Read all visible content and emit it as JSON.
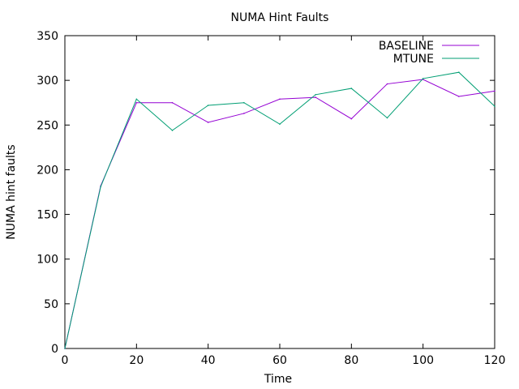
{
  "chart_data": {
    "type": "line",
    "title": "NUMA Hint Faults",
    "xlabel": "Time",
    "ylabel": "NUMA hint faults",
    "xlim": [
      0,
      120
    ],
    "ylim": [
      0,
      350
    ],
    "xticks": [
      0,
      20,
      40,
      60,
      80,
      100,
      120
    ],
    "yticks": [
      0,
      50,
      100,
      150,
      200,
      250,
      300,
      350
    ],
    "grid": false,
    "legend_position": "top-right",
    "x": [
      0,
      10,
      20,
      30,
      40,
      50,
      60,
      70,
      80,
      90,
      100,
      110,
      120
    ],
    "series": [
      {
        "name": "BASELINE",
        "color": "#9400d3",
        "values": [
          0,
          182,
          275,
          275,
          253,
          263,
          279,
          281,
          257,
          296,
          301,
          282,
          288
        ]
      },
      {
        "name": "MTUNE",
        "color": "#009e73",
        "values": [
          0,
          181,
          279,
          244,
          272,
          275,
          251,
          284,
          291,
          258,
          302,
          309,
          271
        ]
      }
    ]
  }
}
